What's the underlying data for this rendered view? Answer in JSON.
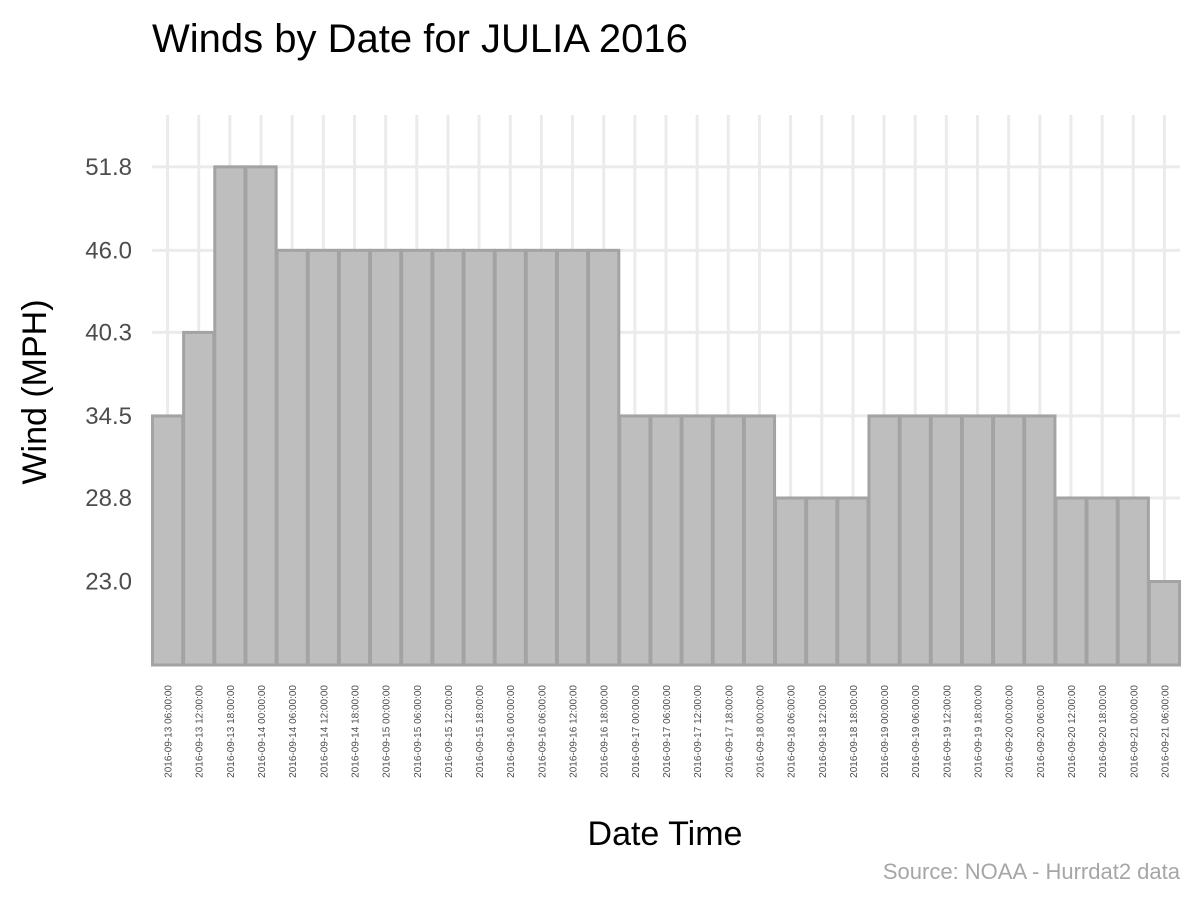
{
  "chart_data": {
    "type": "bar",
    "title": "Winds by Date for JULIA 2016",
    "xlabel": "Date Time",
    "ylabel": "Wind (MPH)",
    "caption": "Source: NOAA - Hurrdat2 data",
    "categories": [
      "2016-09-13 06:00:00",
      "2016-09-13 12:00:00",
      "2016-09-13 18:00:00",
      "2016-09-14 00:00:00",
      "2016-09-14 06:00:00",
      "2016-09-14 12:00:00",
      "2016-09-14 18:00:00",
      "2016-09-15 00:00:00",
      "2016-09-15 06:00:00",
      "2016-09-15 12:00:00",
      "2016-09-15 18:00:00",
      "2016-09-16 00:00:00",
      "2016-09-16 06:00:00",
      "2016-09-16 12:00:00",
      "2016-09-16 18:00:00",
      "2016-09-17 00:00:00",
      "2016-09-17 06:00:00",
      "2016-09-17 12:00:00",
      "2016-09-17 18:00:00",
      "2016-09-18 00:00:00",
      "2016-09-18 06:00:00",
      "2016-09-18 12:00:00",
      "2016-09-18 18:00:00",
      "2016-09-19 00:00:00",
      "2016-09-19 06:00:00",
      "2016-09-19 12:00:00",
      "2016-09-19 18:00:00",
      "2016-09-20 00:00:00",
      "2016-09-20 06:00:00",
      "2016-09-20 12:00:00",
      "2016-09-20 18:00:00",
      "2016-09-21 00:00:00",
      "2016-09-21 06:00:00"
    ],
    "values": [
      34.5,
      40.3,
      51.8,
      51.8,
      46.0,
      46.0,
      46.0,
      46.0,
      46.0,
      46.0,
      46.0,
      46.0,
      46.0,
      46.0,
      46.0,
      34.5,
      34.5,
      34.5,
      34.5,
      34.5,
      28.8,
      28.8,
      28.8,
      34.5,
      34.5,
      34.5,
      34.5,
      34.5,
      34.5,
      28.8,
      28.8,
      28.8,
      23.0
    ],
    "yticks": [
      "23.0",
      "28.8",
      "34.5",
      "40.3",
      "46.0",
      "51.8"
    ],
    "ylim": [
      17.2,
      55.4
    ],
    "grid": true,
    "legend": "none",
    "colors": {
      "bar_fill": "#bebebe",
      "bar_outline": "#a3a3a3",
      "grid": "#ebebeb",
      "caption": "#a6a6a6"
    }
  }
}
